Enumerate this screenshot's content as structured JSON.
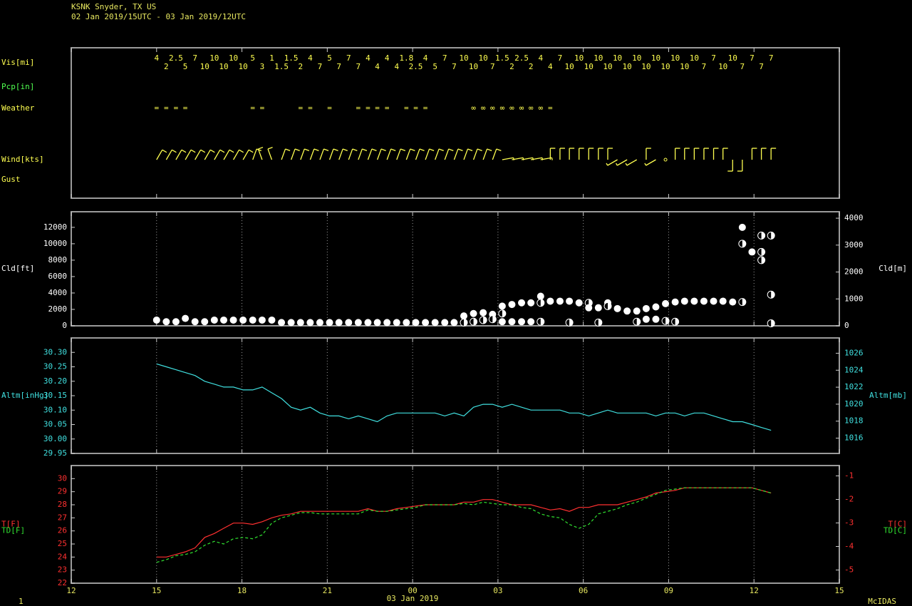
{
  "chart_data": {
    "type": "meteogram",
    "title": "KSNK  Snyder, TX US",
    "subtitle": "02 Jan 2019/15UTC - 03 Jan 2019/12UTC",
    "text_color": "#e8e860",
    "x": [
      15,
      15.34,
      15.68,
      16.01,
      16.35,
      16.69,
      17.03,
      17.36,
      17.7,
      18.04,
      18.38,
      18.71,
      19.05,
      19.39,
      19.73,
      20.06,
      20.4,
      20.74,
      21.08,
      21.41,
      21.75,
      22.09,
      22.43,
      22.76,
      23.1,
      23.44,
      23.78,
      24.11,
      24.45,
      24.79,
      25.13,
      25.46,
      25.8,
      26.14,
      26.48,
      26.81,
      27.15,
      27.49,
      27.83,
      28.16,
      28.5,
      28.84,
      29.18,
      29.51,
      29.85,
      30.19,
      30.53,
      30.86,
      31.2,
      31.54,
      31.88,
      32.21,
      32.55,
      32.89,
      33.23,
      33.56,
      33.9,
      34.24,
      34.58,
      34.91,
      35.25,
      35.59,
      35.93,
      36.26,
      36.6
    ],
    "xlim": [
      12,
      39
    ],
    "xticks": [
      12,
      15,
      18,
      21,
      {
        "value": 24,
        "label": "00"
      },
      {
        "value": 27,
        "label": "03"
      },
      {
        "value": 30,
        "label": "06"
      },
      {
        "value": 33,
        "label": "09"
      },
      {
        "value": 36,
        "label": "12"
      },
      {
        "value": 39,
        "label": "15"
      }
    ],
    "xlabel": "03 Jan 2019",
    "grid": true,
    "footer": {
      "left": "1",
      "right": "McIDAS"
    },
    "panels": [
      {
        "type": "station-text",
        "rows": [
          {
            "label": "Vis[mi]",
            "color": "#ffff50",
            "values": [
              4,
              2,
              2.5,
              5,
              7,
              10,
              10,
              10,
              10,
              10,
              5,
              3,
              1,
              1.5,
              1.5,
              2,
              4,
              7,
              5,
              7,
              7,
              7,
              4,
              4,
              4,
              4,
              1.8,
              2.5,
              4,
              5,
              7,
              7,
              10,
              10,
              10,
              7,
              1.5,
              2,
              2.5,
              2,
              4,
              4,
              7,
              10,
              10,
              10,
              10,
              10,
              10,
              10,
              10,
              10,
              10,
              10,
              10,
              10,
              10,
              7,
              7,
              10,
              10,
              7,
              7,
              7,
              7
            ]
          },
          {
            "label": "Pcp[in]",
            "color": "#50ff50"
          },
          {
            "label": "Weather",
            "color": "#ffff50",
            "values": [
              "=",
              "=",
              "=",
              "=",
              null,
              null,
              null,
              null,
              null,
              null,
              "=",
              "=",
              null,
              null,
              null,
              "=",
              "=",
              null,
              "=",
              null,
              null,
              "=",
              "=",
              "=",
              "=",
              null,
              "=",
              "=",
              "=",
              null,
              null,
              null,
              null,
              "∞",
              "∞",
              "∞",
              "∞",
              "∞",
              "∞",
              "∞",
              "∞",
              "=",
              null,
              null,
              null,
              null,
              null,
              null,
              null,
              null,
              null,
              null,
              null,
              null,
              null,
              null,
              null,
              null,
              null,
              null,
              null,
              null,
              null,
              null,
              null
            ]
          },
          {
            "label": "Wind[kts]",
            "color": "#ffff50",
            "direction": [
              30,
              30,
              30,
              30,
              30,
              30,
              30,
              30,
              30,
              30,
              20,
              340,
              340,
              20,
              20,
              20,
              20,
              20,
              20,
              20,
              20,
              20,
              20,
              20,
              20,
              20,
              20,
              20,
              20,
              20,
              20,
              20,
              20,
              20,
              20,
              20,
              80,
              80,
              80,
              80,
              80,
              360,
              360,
              360,
              360,
              360,
              360,
              360,
              240,
              240,
              240,
              360,
              240,
              null,
              360,
              360,
              360,
              360,
              360,
              360,
              180,
              180,
              360,
              360,
              360
            ],
            "speed": [
              10,
              10,
              10,
              10,
              10,
              10,
              10,
              10,
              10,
              10,
              10,
              10,
              10,
              10,
              10,
              10,
              10,
              10,
              10,
              10,
              10,
              10,
              10,
              10,
              10,
              10,
              10,
              10,
              10,
              10,
              10,
              10,
              10,
              10,
              10,
              10,
              5,
              5,
              5,
              5,
              5,
              10,
              10,
              10,
              10,
              10,
              10,
              10,
              5,
              5,
              5,
              10,
              5,
              0,
              10,
              10,
              10,
              10,
              10,
              10,
              10,
              10,
              10,
              10,
              10
            ]
          },
          {
            "label": "Gust",
            "color": "#ffff50"
          }
        ]
      },
      {
        "type": "cloud",
        "ylabel": "Cld[ft]",
        "y2label": "Cld[m]",
        "color": "#ffffff",
        "ylim": [
          0,
          13900
        ],
        "yticks": [
          0,
          2000,
          4000,
          6000,
          8000,
          10000,
          12000
        ],
        "y2lim": [
          0,
          4240
        ],
        "y2ticks": [
          0,
          1000,
          2000,
          3000,
          4000
        ],
        "heights": [
          [
            700
          ],
          [
            500
          ],
          [
            500
          ],
          [
            900
          ],
          [
            500
          ],
          [
            500
          ],
          [
            700
          ],
          [
            700
          ],
          [
            700
          ],
          [
            700
          ],
          [
            700
          ],
          [
            700
          ],
          [
            700
          ],
          [
            400
          ],
          [
            400
          ],
          [
            400
          ],
          [
            400
          ],
          [
            400
          ],
          [
            400
          ],
          [
            400
          ],
          [
            400
          ],
          [
            400
          ],
          [
            400
          ],
          [
            400
          ],
          [
            400
          ],
          [
            400
          ],
          [
            400
          ],
          [
            400
          ],
          [
            400
          ],
          [
            400
          ],
          [
            400
          ],
          [
            400
          ],
          [
            1200,
            400
          ],
          [
            1500,
            500
          ],
          [
            1600,
            700
          ],
          [
            1400,
            800
          ],
          [
            2400,
            1500,
            500
          ],
          [
            2600,
            500
          ],
          [
            2800,
            500
          ],
          [
            2800,
            500
          ],
          [
            3600,
            2800,
            500
          ],
          [
            3000
          ],
          [
            3000
          ],
          [
            3000,
            400
          ],
          [
            2800
          ],
          [
            2800,
            2200
          ],
          [
            2200,
            400
          ],
          [
            2800,
            2400
          ],
          [
            2100
          ],
          [
            1800
          ],
          [
            1800,
            500
          ],
          [
            2100,
            800
          ],
          [
            2300,
            800
          ],
          [
            2700,
            600
          ],
          [
            2900,
            500
          ],
          [
            3000
          ],
          [
            3000
          ],
          [
            3000
          ],
          [
            3000
          ],
          [
            3000
          ],
          [
            2900
          ],
          [
            12000,
            10000,
            2900
          ],
          [
            9000
          ],
          [
            11000,
            9000,
            8000
          ],
          [
            11000,
            3800,
            300
          ]
        ],
        "cover": [
          [
            1
          ],
          [
            1
          ],
          [
            1
          ],
          [
            1
          ],
          [
            1
          ],
          [
            1
          ],
          [
            1
          ],
          [
            1
          ],
          [
            1
          ],
          [
            1
          ],
          [
            1
          ],
          [
            1
          ],
          [
            1
          ],
          [
            1
          ],
          [
            1
          ],
          [
            1
          ],
          [
            1
          ],
          [
            1
          ],
          [
            1
          ],
          [
            1
          ],
          [
            1
          ],
          [
            1
          ],
          [
            1
          ],
          [
            1
          ],
          [
            1
          ],
          [
            1
          ],
          [
            1
          ],
          [
            1
          ],
          [
            1
          ],
          [
            1
          ],
          [
            1
          ],
          [
            1
          ],
          [
            1,
            0.5
          ],
          [
            1,
            0.5
          ],
          [
            1,
            0.5
          ],
          [
            1,
            0.5
          ],
          [
            1,
            0.5,
            1
          ],
          [
            1,
            1
          ],
          [
            1,
            1
          ],
          [
            1,
            1
          ],
          [
            1,
            0.5,
            0.5
          ],
          [
            1
          ],
          [
            1
          ],
          [
            1,
            0.5
          ],
          [
            1
          ],
          [
            0.5,
            1
          ],
          [
            1,
            0.5
          ],
          [
            1,
            0.5
          ],
          [
            1
          ],
          [
            1
          ],
          [
            1,
            0.5
          ],
          [
            1,
            1
          ],
          [
            1,
            1
          ],
          [
            1,
            0.5
          ],
          [
            1,
            0.5
          ],
          [
            1
          ],
          [
            1
          ],
          [
            1
          ],
          [
            1
          ],
          [
            1
          ],
          [
            1
          ],
          [
            1,
            0.5,
            0.5
          ],
          [
            1
          ],
          [
            0.5,
            0.5,
            0.5
          ],
          [
            0.5,
            0.5,
            0.5
          ]
        ]
      },
      {
        "type": "line",
        "ylabel": "Altm[inHg]",
        "y2label": "Altm[mb]",
        "color": "#40e0e0",
        "ylim": [
          29.95,
          30.35
        ],
        "yticks": [
          29.95,
          {
            "value": 30,
            "label": "30.00"
          },
          30.05,
          {
            "value": 30.1,
            "label": "30.10"
          },
          30.15,
          {
            "value": 30.2,
            "label": "30.20"
          },
          30.25,
          {
            "value": 30.3,
            "label": "30.30"
          }
        ],
        "y2lim": [
          1014.2,
          1027.8
        ],
        "y2ticks": [
          1016,
          1018,
          1020,
          1022,
          1024,
          1026
        ],
        "series": [
          {
            "color": "#40e0e0",
            "values": [
              30.26,
              30.25,
              30.24,
              30.23,
              30.22,
              30.2,
              30.19,
              30.18,
              30.18,
              30.17,
              30.17,
              30.18,
              30.16,
              30.14,
              30.11,
              30.1,
              30.11,
              30.09,
              30.08,
              30.08,
              30.07,
              30.08,
              30.07,
              30.06,
              30.08,
              30.09,
              30.09,
              30.09,
              30.09,
              30.09,
              30.08,
              30.09,
              30.08,
              30.11,
              30.12,
              30.12,
              30.11,
              30.12,
              30.11,
              30.1,
              30.1,
              30.1,
              30.1,
              30.09,
              30.09,
              30.08,
              30.09,
              30.1,
              30.09,
              30.09,
              30.09,
              30.09,
              30.08,
              30.09,
              30.09,
              30.08,
              30.09,
              30.09,
              30.08,
              30.07,
              30.06,
              30.06,
              30.05,
              30.04,
              30.03
            ]
          }
        ]
      },
      {
        "type": "line",
        "color": "#ff3030",
        "ylim": [
          22,
          31
        ],
        "yticks": [
          22,
          23,
          24,
          25,
          26,
          27,
          28,
          29,
          30
        ],
        "y2lim": [
          -5.56,
          -0.56
        ],
        "y2ticks": [
          -5,
          -4,
          -3,
          -2,
          -1
        ],
        "series": [
          {
            "name": "T[F]",
            "y2name": "T[C]",
            "color": "#ff3030",
            "dash": false,
            "values": [
              24,
              24,
              24.2,
              24.4,
              24.7,
              25.5,
              25.8,
              26.2,
              26.6,
              26.6,
              26.5,
              26.7,
              27,
              27.2,
              27.3,
              27.5,
              27.5,
              27.5,
              27.5,
              27.5,
              27.5,
              27.5,
              27.7,
              27.5,
              27.5,
              27.7,
              27.8,
              27.9,
              28,
              28,
              28,
              28,
              28.2,
              28.2,
              28.4,
              28.4,
              28.2,
              28,
              28,
              28,
              27.8,
              27.6,
              27.7,
              27.5,
              27.8,
              27.8,
              28,
              28,
              28,
              28.2,
              28.4,
              28.6,
              28.9,
              29,
              29.1,
              29.3,
              29.3,
              29.3,
              29.3,
              29.3,
              29.3,
              29.3,
              29.3,
              29.1,
              28.9
            ]
          },
          {
            "name": "TD[F]",
            "y2name": "TD[C]",
            "color": "#30e030",
            "dash": true,
            "values": [
              23.6,
              23.8,
              24.1,
              24.2,
              24.4,
              24.9,
              25.2,
              25,
              25.4,
              25.5,
              25.4,
              25.7,
              26.6,
              27,
              27.2,
              27.4,
              27.4,
              27.3,
              27.3,
              27.3,
              27.3,
              27.3,
              27.6,
              27.5,
              27.5,
              27.6,
              27.7,
              27.8,
              28,
              28,
              28,
              28,
              28.1,
              28,
              28.2,
              28.1,
              28,
              28,
              27.8,
              27.7,
              27.3,
              27.1,
              27,
              26.5,
              26.2,
              26.5,
              27.3,
              27.5,
              27.7,
              28,
              28.2,
              28.5,
              28.8,
              29.1,
              29.2,
              29.3,
              29.3,
              29.3,
              29.3,
              29.3,
              29.3,
              29.3,
              29.3,
              29.1,
              28.9
            ]
          }
        ]
      }
    ]
  }
}
